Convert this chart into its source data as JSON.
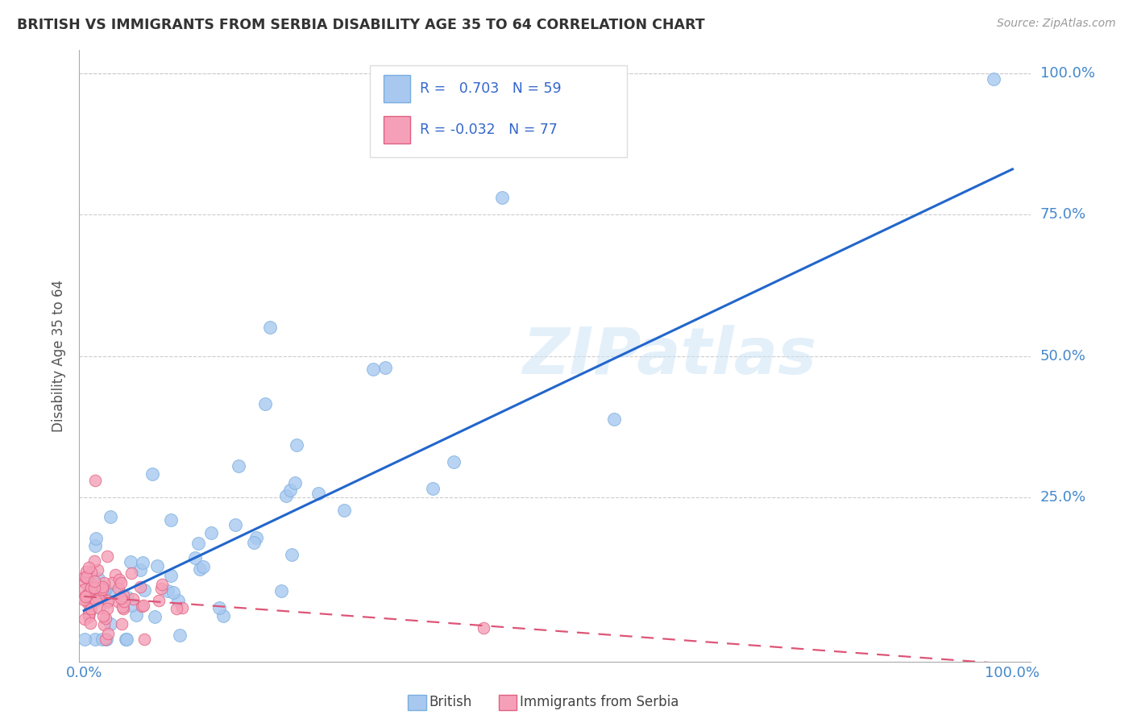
{
  "title": "BRITISH VS IMMIGRANTS FROM SERBIA DISABILITY AGE 35 TO 64 CORRELATION CHART",
  "source": "Source: ZipAtlas.com",
  "ylabel": "Disability Age 35 to 64",
  "watermark": "ZIPatlas",
  "british_R": 0.703,
  "british_N": 59,
  "serbia_R": -0.032,
  "serbia_N": 77,
  "british_color": "#a8c8f0",
  "british_edge_color": "#7aaede",
  "serbia_color": "#f5a0b8",
  "serbia_edge_color": "#e06080",
  "trend_british_color": "#2266cc",
  "trend_serbia_color": "#dd5577",
  "background_color": "#ffffff",
  "grid_color": "#cccccc",
  "title_color": "#333333",
  "tick_color": "#4488cc",
  "legend_color": "#3366cc",
  "british_slope": 0.78,
  "british_intercept": 0.05,
  "serbia_slope": -0.12,
  "serbia_intercept": 0.075
}
